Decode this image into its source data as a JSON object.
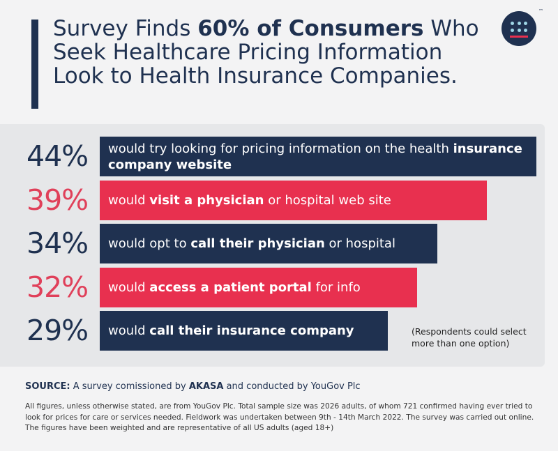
{
  "title": {
    "part1": "Survey Finds ",
    "bold": "60% of Consumers",
    "part2": " Who Seek Healthcare Pricing Information Look to Health Insurance Companies."
  },
  "logo": {
    "tm": "™"
  },
  "colors": {
    "navy": "#1f3150",
    "red": "#e8304f",
    "pct_red": "#e0405a"
  },
  "chart_data": {
    "type": "bar",
    "orientation": "horizontal",
    "xlim": [
      0,
      44
    ],
    "categories": [
      "would try looking for pricing information on the health insurance company website",
      "would visit a physician or hospital web site",
      "would opt to call their physician or hospital",
      "would access a patient portal for info",
      "would call their insurance company"
    ],
    "values": [
      44,
      39,
      34,
      32,
      29
    ],
    "bars": [
      {
        "value": 44,
        "pct": "44%",
        "color": "navy",
        "parts": [
          {
            "t": "would try looking for pricing information on the health ",
            "b": false
          },
          {
            "t": "insurance company website",
            "b": true
          }
        ]
      },
      {
        "value": 39,
        "pct": "39%",
        "color": "red",
        "parts": [
          {
            "t": "would ",
            "b": false
          },
          {
            "t": "visit a physician",
            "b": true
          },
          {
            "t": " or hospital web site",
            "b": false
          }
        ]
      },
      {
        "value": 34,
        "pct": "34%",
        "color": "navy",
        "parts": [
          {
            "t": "would opt to ",
            "b": false
          },
          {
            "t": "call their physician",
            "b": true
          },
          {
            "t": " or hospital",
            "b": false
          }
        ]
      },
      {
        "value": 32,
        "pct": "32%",
        "color": "red",
        "parts": [
          {
            "t": "would ",
            "b": false
          },
          {
            "t": "access a patient portal",
            "b": true
          },
          {
            "t": " for info",
            "b": false
          }
        ]
      },
      {
        "value": 29,
        "pct": "29%",
        "color": "navy",
        "parts": [
          {
            "t": "would ",
            "b": false
          },
          {
            "t": "call their insurance company",
            "b": true
          }
        ]
      }
    ]
  },
  "note": "(Respondents could select more than one option)",
  "source": {
    "label": "SOURCE:",
    "text1": " A survey comissioned by ",
    "company": "AKASA",
    "text2": " and conducted by YouGov Plc"
  },
  "footnote": "All figures, unless otherwise stated, are from YouGov Plc. Total sample size was 2026 adults, of whom 721 confirmed having ever tried to look for prices for care or services needed. Fieldwork was undertaken between 9th - 14th March 2022.  The survey was carried out online. The figures have been weighted and are representative of all US adults (aged 18+)"
}
